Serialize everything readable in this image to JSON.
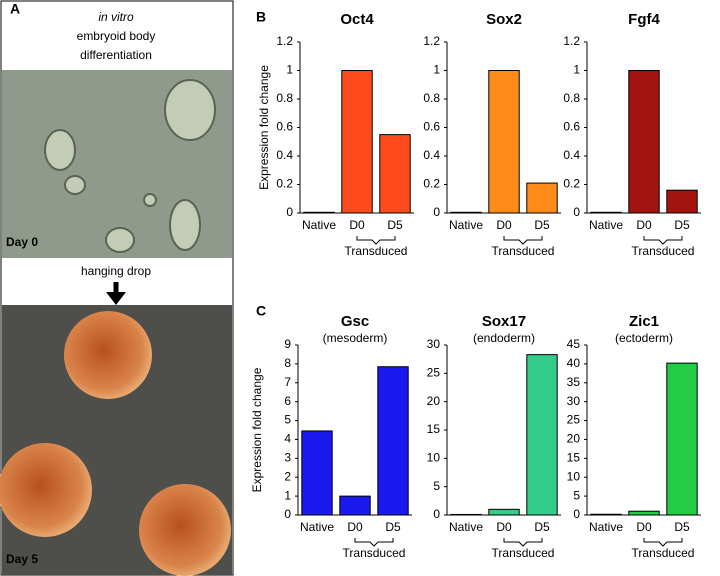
{
  "panel_labels": [
    "A",
    "B",
    "C"
  ],
  "panel_a": {
    "title_italic": "in vitro",
    "title_lines": [
      "embryoid body",
      "differentiation"
    ],
    "step": "hanging drop",
    "day_labels": [
      "Day 0",
      "Day 5"
    ]
  },
  "chart_data": [
    {
      "type": "bar",
      "title": "Oct4",
      "ylabel": "Expression fold change",
      "categories": [
        "Native",
        "D0",
        "D5"
      ],
      "group_label": "Transduced",
      "values": [
        0.005,
        1,
        0.55
      ],
      "color": "#ff4a1c",
      "ylim": [
        0,
        1.2
      ],
      "yticks": [
        0,
        0.2,
        0.4,
        0.6,
        0.8,
        1,
        1.2
      ]
    },
    {
      "type": "bar",
      "title": "Sox2",
      "categories": [
        "Native",
        "D0",
        "D5"
      ],
      "group_label": "Transduced",
      "values": [
        0.005,
        1,
        0.21
      ],
      "color": "#ff8c1a",
      "ylim": [
        0,
        1.2
      ],
      "yticks": [
        0,
        0.2,
        0.4,
        0.6,
        0.8,
        1,
        1.2
      ]
    },
    {
      "type": "bar",
      "title": "Fgf4",
      "categories": [
        "Native",
        "D0",
        "D5"
      ],
      "group_label": "Transduced",
      "values": [
        0.005,
        1,
        0.16
      ],
      "color": "#a31410",
      "ylim": [
        0,
        1.2
      ],
      "yticks": [
        0,
        0.2,
        0.4,
        0.6,
        0.8,
        1,
        1.2
      ]
    },
    {
      "type": "bar",
      "title": "Gsc",
      "subtitle": "(mesoderm)",
      "ylabel": "Expression fold change",
      "categories": [
        "Native",
        "D0",
        "D5"
      ],
      "group_label": "Transduced",
      "values": [
        4.45,
        1,
        7.85
      ],
      "color": "#1a1aee",
      "ylim": [
        0,
        9
      ],
      "yticks": [
        0,
        1,
        2,
        3,
        4,
        5,
        6,
        7,
        8,
        9
      ]
    },
    {
      "type": "bar",
      "title": "Sox17",
      "subtitle": "(endoderm)",
      "categories": [
        "Native",
        "D0",
        "D5"
      ],
      "group_label": "Transduced",
      "values": [
        0.1,
        1,
        28.3
      ],
      "color": "#33cc88",
      "ylim": [
        0,
        30
      ],
      "yticks": [
        0,
        5,
        10,
        15,
        20,
        25,
        30
      ]
    },
    {
      "type": "bar",
      "title": "Zic1",
      "subtitle": "(ectoderm)",
      "categories": [
        "Native",
        "D0",
        "D5"
      ],
      "group_label": "Transduced",
      "values": [
        0.2,
        1,
        40.2
      ],
      "color": "#22cc44",
      "ylim": [
        0,
        45
      ],
      "yticks": [
        0,
        5,
        10,
        15,
        20,
        25,
        30,
        35,
        40,
        45
      ]
    }
  ]
}
